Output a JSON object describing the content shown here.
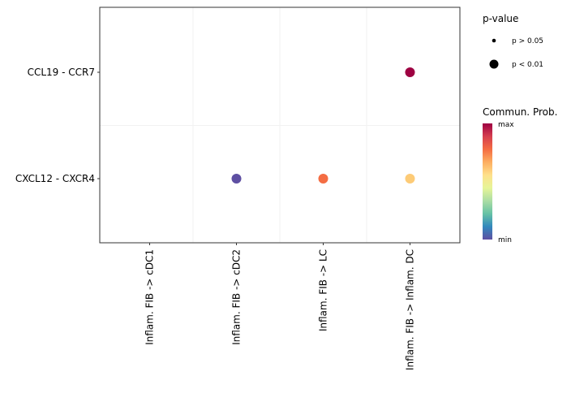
{
  "chart_data": {
    "type": "scatter",
    "title": "",
    "xlabel": "",
    "ylabel": "",
    "x_categories": [
      "Inflam. FIB -> cDC1",
      "Inflam. FIB -> cDC2",
      "Inflam. FIB -> LC",
      "Inflam. FIB -> Inflam. DC"
    ],
    "y_categories": [
      "CXCL12 - CXCR4",
      "CCL19 - CCR7"
    ],
    "grid": true,
    "points": [
      {
        "x": "Inflam. FIB -> cDC2",
        "y": "CXCL12 - CXCR4",
        "commun_prob_relative": 0.0,
        "pvalue": "p < 0.01",
        "color": "#5E4FA2"
      },
      {
        "x": "Inflam. FIB -> LC",
        "y": "CXCL12 - CXCR4",
        "commun_prob_relative": 0.8,
        "pvalue": "p < 0.01",
        "color": "#F46D43"
      },
      {
        "x": "Inflam. FIB -> Inflam. DC",
        "y": "CXCL12 - CXCR4",
        "commun_prob_relative": 0.62,
        "pvalue": "p < 0.01",
        "color": "#FDCB77"
      },
      {
        "x": "Inflam. FIB -> Inflam. DC",
        "y": "CCL19 - CCR7",
        "commun_prob_relative": 1.0,
        "pvalue": "p < 0.01",
        "color": "#9E0142"
      }
    ],
    "legend_size": {
      "title": "p-value",
      "entries": [
        "p > 0.05",
        "p < 0.01"
      ],
      "placement": "right"
    },
    "legend_color": {
      "title": "Commun. Prob.",
      "max_label": "max",
      "min_label": "min",
      "colors": [
        "#5E4FA2",
        "#3288BD",
        "#66C2A5",
        "#ABDDA4",
        "#E6F598",
        "#FEE08B",
        "#FDAE61",
        "#F46D43",
        "#D53E4F",
        "#9E0142"
      ],
      "placement": "right"
    }
  }
}
